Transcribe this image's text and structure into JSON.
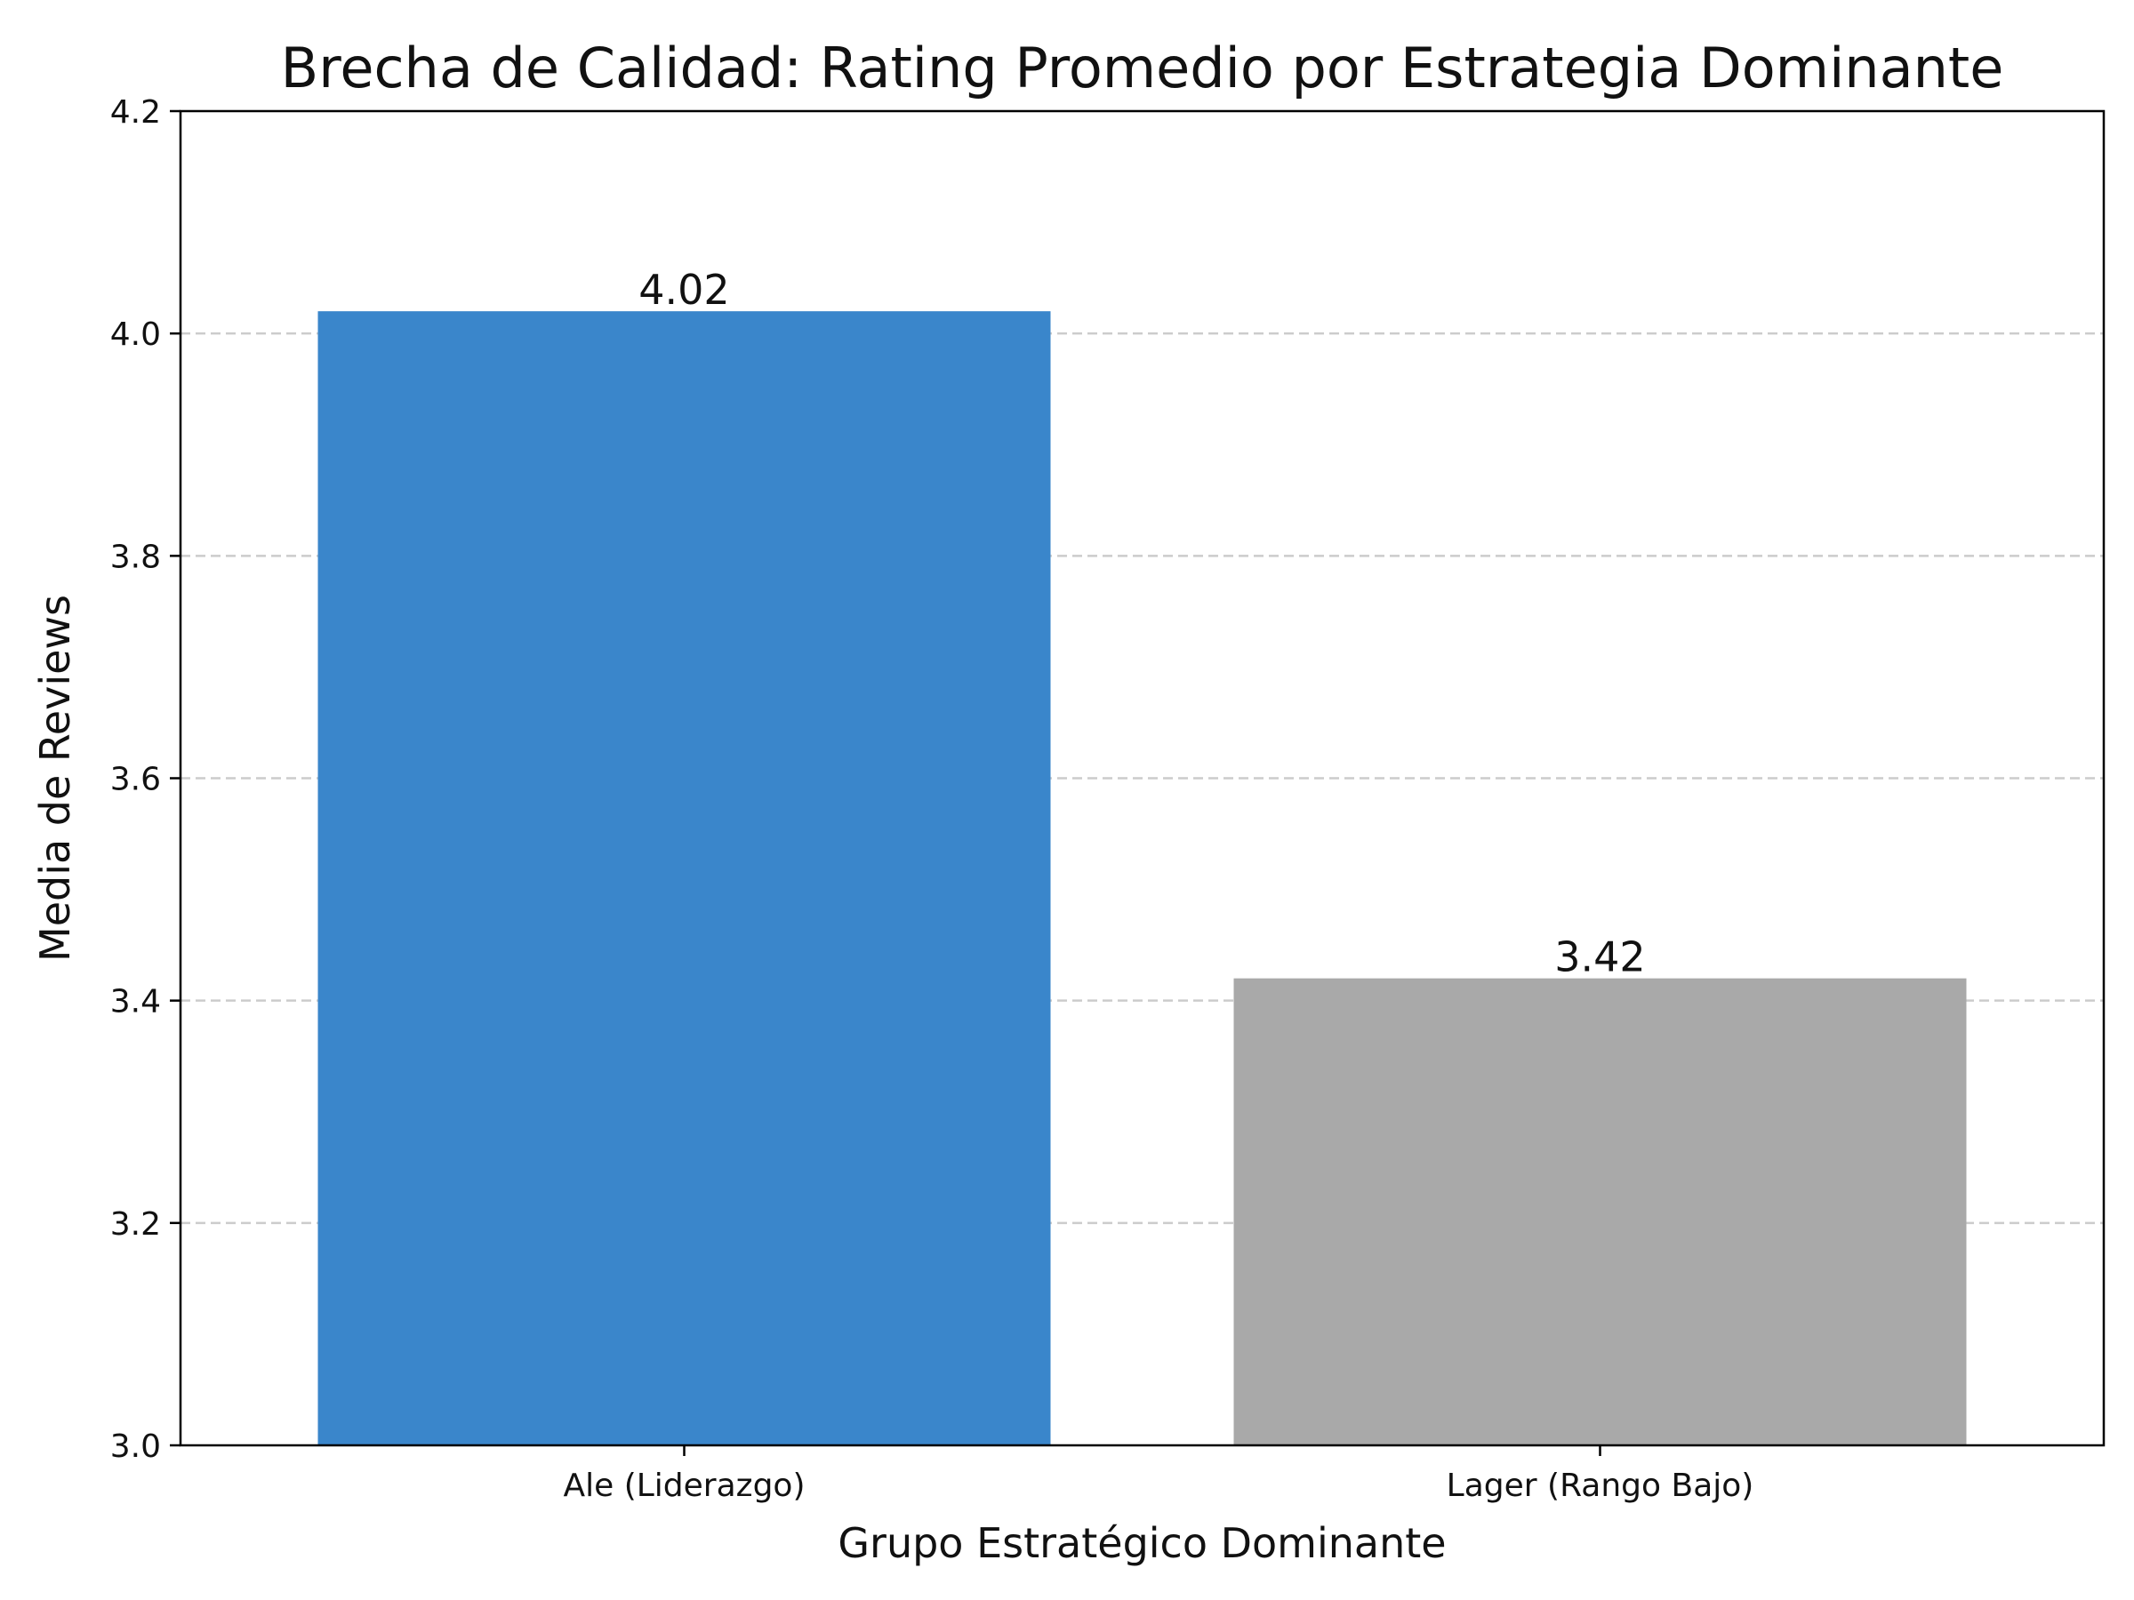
{
  "chart_data": {
    "type": "bar",
    "title": "Brecha de Calidad: Rating Promedio por Estrategia Dominante",
    "xlabel": "Grupo Estratégico Dominante",
    "ylabel": "Media de Reviews",
    "categories": [
      "Ale (Liderazgo)",
      "Lager (Rango Bajo)"
    ],
    "values": [
      4.02,
      3.42
    ],
    "value_labels": [
      "4.02",
      "3.42"
    ],
    "bar_colors": [
      "#3a86cb",
      "#a9a9a9"
    ],
    "ylim": [
      3.0,
      4.2
    ],
    "yticks": [
      3.0,
      3.2,
      3.4,
      3.6,
      3.8,
      4.0,
      4.2
    ],
    "ytick_labels": [
      "3.0",
      "3.2",
      "3.4",
      "3.6",
      "3.8",
      "4.0",
      "4.2"
    ],
    "grid": "y-dashed",
    "legend": "none"
  }
}
